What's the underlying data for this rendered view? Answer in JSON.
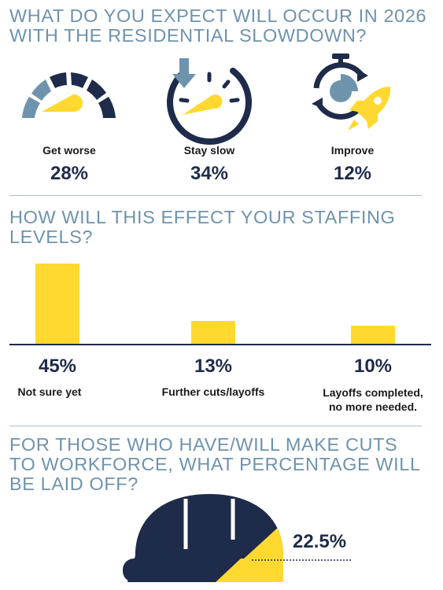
{
  "colors": {
    "heading": "#6e93ad",
    "navy": "#1f2b4a",
    "yellow": "#ffd92f",
    "steel": "#6e93ad",
    "divider": "#a9bfcf"
  },
  "section1": {
    "heading_line1": "WHAT DO YOU EXPECT WILL OCCUR IN 2026",
    "heading_line2": "WITH THE RESIDENTIAL SLOWDOWN?",
    "options": [
      {
        "label": "Get worse",
        "percent": "28%",
        "icon": "speedometer-high-icon"
      },
      {
        "label": "Stay slow",
        "percent": "34%",
        "icon": "speedometer-down-arrow-icon"
      },
      {
        "label": "Improve",
        "percent": "12%",
        "icon": "stopwatch-rocket-icon"
      }
    ]
  },
  "section2": {
    "heading_line1": "HOW WILL THIS EFFECT YOUR STAFFING",
    "heading_line2": "LEVELS?",
    "bars": [
      {
        "percent": "45%",
        "label": "Not sure yet"
      },
      {
        "percent": "13%",
        "label": "Further cuts/layoffs"
      },
      {
        "percent": "10%",
        "label_line1": "Layoffs completed,",
        "label_line2": "no more needed."
      }
    ]
  },
  "section3": {
    "heading_line1": "FOR THOSE WHO HAVE/WILL MAKE CUTS",
    "heading_line2": "TO WORKFORCE, WHAT PERCENTAGE WILL",
    "heading_line3": "BE LAID OFF?",
    "value": "22.5%",
    "icon": "hard-hat-icon"
  },
  "chart_data": [
    {
      "type": "bar",
      "categories": [
        "Get worse",
        "Stay slow",
        "Improve"
      ],
      "values": [
        28,
        34,
        12
      ],
      "unit": "%"
    },
    {
      "type": "bar",
      "categories": [
        "Not sure yet",
        "Further cuts/layoffs",
        "Layoffs completed, no more needed."
      ],
      "values": [
        45,
        13,
        10
      ],
      "unit": "%",
      "ylim": [
        0,
        45
      ]
    },
    {
      "type": "pie",
      "categories": [
        "Laid off"
      ],
      "values": [
        22.5
      ],
      "unit": "%"
    }
  ]
}
